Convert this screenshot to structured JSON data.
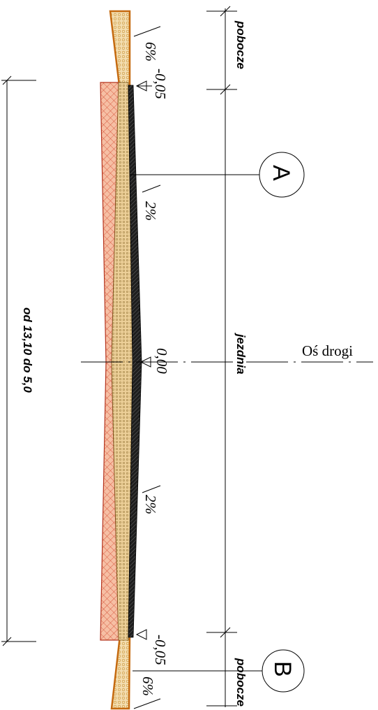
{
  "labels": {
    "shoulder_top": "pobocze",
    "shoulder_bottom": "pobocze",
    "roadway": "jezdnia",
    "axis": "Oś drogi",
    "width_range": "od 13,10 do 5,0"
  },
  "slopes": {
    "shoulder_top": "6%",
    "lane_top": "2%",
    "lane_bottom": "2%",
    "shoulder_bottom": "6%"
  },
  "elevations": {
    "edge_top": "-0,05",
    "axis": "0,00",
    "edge_bottom": "-0,05"
  },
  "detail_markers": {
    "a": "A",
    "b": "B"
  },
  "colors": {
    "subbase": "#f6bfa4",
    "subbase_hatch": "#d2462c",
    "shoulder_fill": "#f3ddb0",
    "shoulder_edge": "#c56a10",
    "base_fill": "#eccf98",
    "asphalt": "#1e1e1e"
  }
}
